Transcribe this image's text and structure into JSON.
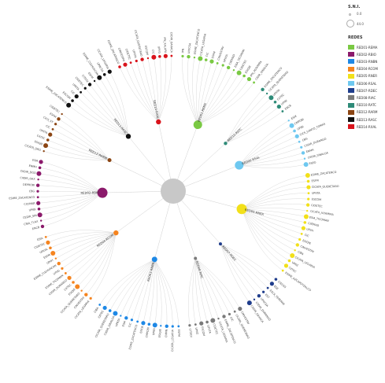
{
  "legend": {
    "size_title": "S.N.I.",
    "size_values": [
      "0.0",
      "44.0"
    ],
    "color_title": "REDES",
    "items": [
      {
        "label": "RED01-REMA",
        "color": "#7ac943"
      },
      {
        "label": "RED02-RBIO",
        "color": "#8b1a6b"
      },
      {
        "label": "RED03-RNBN",
        "color": "#1e88e5"
      },
      {
        "label": "RED04-RCOM",
        "color": "#f5841f"
      },
      {
        "label": "RED05-RNER",
        "color": "#f2e01a"
      },
      {
        "label": "RED06-RSAL",
        "color": "#6ec8f0"
      },
      {
        "label": "RED07-RDEC",
        "color": "#1f3d8c"
      },
      {
        "label": "RED08-RIAC",
        "color": "#7a7a7a"
      },
      {
        "label": "RED10-RATC",
        "color": "#2e8b78"
      },
      {
        "label": "RED12-RARM",
        "color": "#8b4513"
      },
      {
        "label": "RED13-RASC",
        "color": "#111111"
      },
      {
        "label": "RED14-RXAL",
        "color": "#d9141c"
      }
    ]
  },
  "tree": {
    "root_color": "#c8c8c8",
    "branches": [
      {
        "name": "RED01-REMA",
        "color": "#7ac943",
        "angle": -62,
        "leaves": [
          "IPN",
          "UPIICSA",
          "ESIME_ZACATENCO",
          "CICATA_LEGARIA",
          "CIC",
          "ESFM",
          "CINVESTAV",
          "UPIITA",
          "CIIEMAD",
          "ESIA_TICOMAN",
          "CIDETEC",
          "ESIQIE",
          "IPN_ALTAMIRA",
          "CIDIR_SINALOA"
        ]
      },
      {
        "name": "RED10-RATC",
        "color": "#2e8b78",
        "angle": -38,
        "leaves": [
          "ESIME_ZACATENCO",
          "CICATA_QUERETARO",
          "UPIITA",
          "CIITEC",
          "UPIBI",
          "ENCB"
        ]
      },
      {
        "name": "RED06-RSAL",
        "color": "#6ec8f0",
        "angle": -8,
        "leaves": [
          "ESM",
          "CMPOBI",
          "UPIBI",
          "CICS_SANTO_TOMAS",
          "CBG",
          "CIIDIR_DURANGO",
          "ENMH",
          "CIIDIR_SINALOA",
          "ESEO"
        ]
      },
      {
        "name": "RED05-RNER",
        "color": "#f2e01a",
        "angle": 26,
        "leaves": [
          "ESIME_ZACATENCO",
          "ESFM",
          "CICATA_QUERETARO",
          "UPIITA",
          "ESCOM",
          "CIDETEC",
          "CICATA_ALTAMIRA",
          "ESIA_TICOMAN",
          "CIIEMAD",
          "UPIIH",
          "CIC",
          "ESIQIE",
          "CINVESTAV",
          "CIBA",
          "CICATA_LEGARIA",
          "UPIIZ",
          "CIITEC",
          "ESIME_AZCAPOTZALCO"
        ]
      },
      {
        "name": "RED07-RDEC",
        "color": "#1f3d8c",
        "angle": 68,
        "leaves": [
          "CIECAS",
          "ESE",
          "ESCA_TEPEPAN",
          "EST",
          "UPIICSA",
          "CIIDIR_DURANGO",
          "CIIDIR_OAXACA"
        ]
      },
      {
        "name": "RED08-RIAC",
        "color": "#7a7a7a",
        "angle": 92,
        "leaves": [
          "CINVESTAV",
          "CICATA_QUERETARO",
          "CIC",
          "ESIME_ZACATENCO",
          "CICATA_LEGARIA",
          "CIDETEC",
          "UPIITA",
          "ESCOM",
          "UPIIZ",
          "CITEDI"
        ]
      },
      {
        "name": "RED03-RNBN",
        "color": "#1e88e5",
        "angle": 118,
        "leaves": [
          "ESFM",
          "CICATA_LEGARIA",
          "CNMN",
          "ESIQIE",
          "UPIBI",
          "CMPOBI",
          "ENCB",
          "ESIME_ZACATENCO",
          "CIC",
          "ESIA",
          "UPIITA",
          "CIIDIR_SINALOA",
          "CICATA_QUERETARO",
          "CIITEC",
          "CIBA"
        ]
      },
      {
        "name": "RED04-RCOM",
        "color": "#f5841f",
        "angle": 150,
        "leaves": [
          "CICATA_LEGARIA",
          "CINVESTAV",
          "CICATA_QUERETARO",
          "ESIQIE",
          "CIITEC",
          "CIIDIR_DURANGO",
          "ESIME_TICOMAN",
          "UPIIG",
          "ESIME_CULHUACAN",
          "UPIIH",
          "ESFM",
          "UPIITA",
          "CIDETEC",
          "ESIA"
        ]
      },
      {
        "name": "RED02-RBIO",
        "color": "#8b1a6b",
        "angle": 178,
        "leaves": [
          "ENCB",
          "CIBA_TLAX",
          "CEDIR_SIN",
          "UPIBI",
          "CICIMAR",
          "ESIME_ZACATENCO",
          "CBG",
          "DEPROBI",
          "CIIDIR_OAX",
          "CIIDIR_DGO",
          "ENMH",
          "ESM"
        ]
      },
      {
        "name": "RED12-RARM",
        "color": "#8b4513",
        "angle": 204,
        "leaves": [
          "CICATA_QRO",
          "ESIQIE",
          "CIITEC",
          "UPIITA",
          "CIC",
          "CICS_ST",
          "ESFM",
          "CIDETEC"
        ]
      },
      {
        "name": "RED13-RASC",
        "color": "#111111",
        "angle": 226,
        "leaves": [
          "ESIME_ZACATENCO",
          "ESCOM",
          "CIC",
          "UPIITA",
          "CIDETEC",
          "CITEDI",
          "ESFM",
          "ESIME_CULHUACAN",
          "UPIICSA",
          "CICATA_LEGARIA"
        ]
      },
      {
        "name": "RED14-RXAL",
        "color": "#d9141c",
        "angle": 252,
        "leaves": [
          "ESIME_ZACATENCO",
          "CINVESTAV",
          "CIDETEC",
          "UPIITA",
          "CICATA_QUERETARO",
          "ESCOM",
          "CIC",
          "UPIIG",
          "IPN_XALAPA",
          "CIIDIR_OAXACA"
        ]
      }
    ]
  }
}
